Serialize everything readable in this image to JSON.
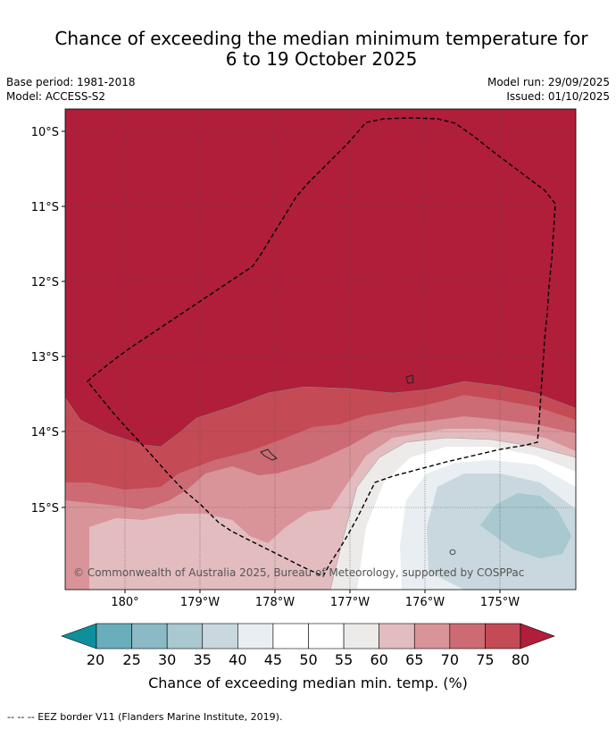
{
  "title_line1": "Chance of exceeding the median minimum temperature for",
  "title_line2": "6 to 19 October 2025",
  "meta": {
    "base_period": "Base period: 1981-2018",
    "model": "Model: ACCESS-S2",
    "model_run": "Model run: 29/09/2025",
    "issued": "Issued: 01/10/2025"
  },
  "map": {
    "lat_ticks": [
      "10°S",
      "11°S",
      "12°S",
      "13°S",
      "14°S",
      "15°S"
    ],
    "lon_ticks": [
      "180°",
      "179°W",
      "178°W",
      "177°W",
      "176°W",
      "175°W"
    ],
    "copyright": "© Commonwealth of Australia 2025, Bureau of Meteorology, supported by COSPPac",
    "dominant_category": "80+",
    "colors": {
      "c80plus": "#b01e3a",
      "c75": "#c44a55",
      "c70": "#cc6b74",
      "c65": "#d9949a",
      "c60": "#e3bcbf",
      "c55": "#ecebea",
      "c50": "#ffffff",
      "c45": "#e8eef1",
      "c40": "#c8d8de",
      "c35": "#a9c8cf"
    }
  },
  "colorbar": {
    "ticks": [
      "20",
      "25",
      "30",
      "35",
      "40",
      "45",
      "50",
      "55",
      "60",
      "65",
      "70",
      "75",
      "80"
    ],
    "label": "Chance of exceeding median min. temp. (%)",
    "colors": [
      "#0e8f9c",
      "#6aaebc",
      "#8bb9c6",
      "#a9c8cf",
      "#c8d8de",
      "#e8eef1",
      "#ffffff",
      "#ffffff",
      "#ecebea",
      "#e3bcbf",
      "#d9949a",
      "#cc6b74",
      "#c44a55",
      "#b01e3a"
    ]
  },
  "footer": "--  --  -- EEZ border V11 (Flanders Marine Institute, 2019)."
}
